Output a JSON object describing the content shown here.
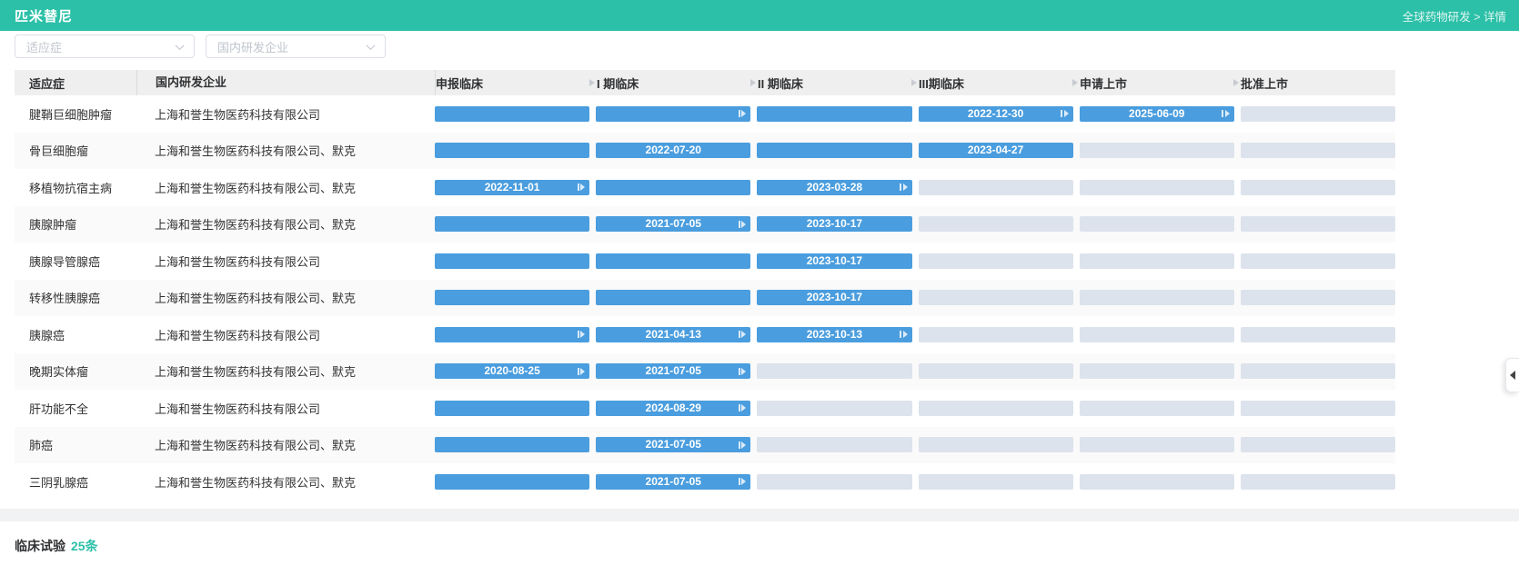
{
  "header": {
    "title": "匹米替尼",
    "breadcrumb": "全球药物研发 > 详情"
  },
  "filters": {
    "indication_placeholder": "适应症",
    "company_placeholder": "国内研发企业"
  },
  "table": {
    "col_indication": "适应症",
    "col_company": "国内研发企业",
    "phase_columns": [
      "申报临床",
      "I 期临床",
      "II 期临床",
      "III期临床",
      "申请上市",
      "批准上市"
    ],
    "rows": [
      {
        "indication": "腱鞘巨细胞肿瘤",
        "company": "上海和誉生物医药科技有限公司",
        "bars": [
          {
            "type": "active",
            "date": "",
            "step": false
          },
          {
            "type": "active",
            "date": "",
            "step": true
          },
          {
            "type": "active",
            "date": "",
            "step": false
          },
          {
            "type": "active",
            "date": "2022-12-30",
            "step": true
          },
          {
            "type": "active",
            "date": "2025-06-09",
            "step": true
          },
          {
            "type": "empty",
            "date": "",
            "step": false
          }
        ]
      },
      {
        "indication": "骨巨细胞瘤",
        "company": "上海和誉生物医药科技有限公司、默克",
        "bars": [
          {
            "type": "active",
            "date": "",
            "step": false
          },
          {
            "type": "active",
            "date": "2022-07-20",
            "step": false
          },
          {
            "type": "active",
            "date": "",
            "step": false
          },
          {
            "type": "active",
            "date": "2023-04-27",
            "step": false
          },
          {
            "type": "empty",
            "date": "",
            "step": false
          },
          {
            "type": "empty",
            "date": "",
            "step": false
          }
        ]
      },
      {
        "indication": "移植物抗宿主病",
        "company": "上海和誉生物医药科技有限公司、默克",
        "bars": [
          {
            "type": "active",
            "date": "2022-11-01",
            "step": true
          },
          {
            "type": "active",
            "date": "",
            "step": false
          },
          {
            "type": "active",
            "date": "2023-03-28",
            "step": true
          },
          {
            "type": "empty",
            "date": "",
            "step": false
          },
          {
            "type": "empty",
            "date": "",
            "step": false
          },
          {
            "type": "empty",
            "date": "",
            "step": false
          }
        ]
      },
      {
        "indication": "胰腺肿瘤",
        "company": "上海和誉生物医药科技有限公司、默克",
        "bars": [
          {
            "type": "active",
            "date": "",
            "step": false
          },
          {
            "type": "active",
            "date": "2021-07-05",
            "step": true
          },
          {
            "type": "active",
            "date": "2023-10-17",
            "step": false
          },
          {
            "type": "empty",
            "date": "",
            "step": false
          },
          {
            "type": "empty",
            "date": "",
            "step": false
          },
          {
            "type": "empty",
            "date": "",
            "step": false
          }
        ]
      },
      {
        "indication": "胰腺导管腺癌",
        "company": "上海和誉生物医药科技有限公司",
        "bars": [
          {
            "type": "active",
            "date": "",
            "step": false
          },
          {
            "type": "active",
            "date": "",
            "step": false
          },
          {
            "type": "active",
            "date": "2023-10-17",
            "step": false
          },
          {
            "type": "empty",
            "date": "",
            "step": false
          },
          {
            "type": "empty",
            "date": "",
            "step": false
          },
          {
            "type": "empty",
            "date": "",
            "step": false
          }
        ]
      },
      {
        "indication": "转移性胰腺癌",
        "company": "上海和誉生物医药科技有限公司、默克",
        "bars": [
          {
            "type": "active",
            "date": "",
            "step": false
          },
          {
            "type": "active",
            "date": "",
            "step": false
          },
          {
            "type": "active",
            "date": "2023-10-17",
            "step": false
          },
          {
            "type": "empty",
            "date": "",
            "step": false
          },
          {
            "type": "empty",
            "date": "",
            "step": false
          },
          {
            "type": "empty",
            "date": "",
            "step": false
          }
        ]
      },
      {
        "indication": "胰腺癌",
        "company": "上海和誉生物医药科技有限公司",
        "bars": [
          {
            "type": "active",
            "date": "",
            "step": true
          },
          {
            "type": "active",
            "date": "2021-04-13",
            "step": true
          },
          {
            "type": "active",
            "date": "2023-10-13",
            "step": true
          },
          {
            "type": "empty",
            "date": "",
            "step": false
          },
          {
            "type": "empty",
            "date": "",
            "step": false
          },
          {
            "type": "empty",
            "date": "",
            "step": false
          }
        ]
      },
      {
        "indication": "晚期实体瘤",
        "company": "上海和誉生物医药科技有限公司、默克",
        "bars": [
          {
            "type": "active",
            "date": "2020-08-25",
            "step": true
          },
          {
            "type": "active",
            "date": "2021-07-05",
            "step": true
          },
          {
            "type": "empty",
            "date": "",
            "step": false
          },
          {
            "type": "empty",
            "date": "",
            "step": false
          },
          {
            "type": "empty",
            "date": "",
            "step": false
          },
          {
            "type": "empty",
            "date": "",
            "step": false
          }
        ]
      },
      {
        "indication": "肝功能不全",
        "company": "上海和誉生物医药科技有限公司",
        "bars": [
          {
            "type": "active",
            "date": "",
            "step": false
          },
          {
            "type": "active",
            "date": "2024-08-29",
            "step": true
          },
          {
            "type": "empty",
            "date": "",
            "step": false
          },
          {
            "type": "empty",
            "date": "",
            "step": false
          },
          {
            "type": "empty",
            "date": "",
            "step": false
          },
          {
            "type": "empty",
            "date": "",
            "step": false
          }
        ]
      },
      {
        "indication": "肺癌",
        "company": "上海和誉生物医药科技有限公司、默克",
        "bars": [
          {
            "type": "active",
            "date": "",
            "step": false
          },
          {
            "type": "active",
            "date": "2021-07-05",
            "step": true
          },
          {
            "type": "empty",
            "date": "",
            "step": false
          },
          {
            "type": "empty",
            "date": "",
            "step": false
          },
          {
            "type": "empty",
            "date": "",
            "step": false
          },
          {
            "type": "empty",
            "date": "",
            "step": false
          }
        ]
      },
      {
        "indication": "三阴乳腺癌",
        "company": "上海和誉生物医药科技有限公司、默克",
        "bars": [
          {
            "type": "active",
            "date": "",
            "step": false
          },
          {
            "type": "active",
            "date": "2021-07-05",
            "step": true
          },
          {
            "type": "empty",
            "date": "",
            "step": false
          },
          {
            "type": "empty",
            "date": "",
            "step": false
          },
          {
            "type": "empty",
            "date": "",
            "step": false
          },
          {
            "type": "empty",
            "date": "",
            "step": false
          }
        ]
      }
    ]
  },
  "footer": {
    "label": "临床试验",
    "count": "25条"
  },
  "colors": {
    "accent_teal": "#2cc0a8",
    "bar_active_blue": "#4a9dde",
    "bar_empty_gray": "#dde3ec"
  },
  "icons": {
    "dropdown": "chevron-down",
    "phase_separator": "play-arrow",
    "bar_progress": "step-forward",
    "panel_toggle": "collapse-left"
  }
}
